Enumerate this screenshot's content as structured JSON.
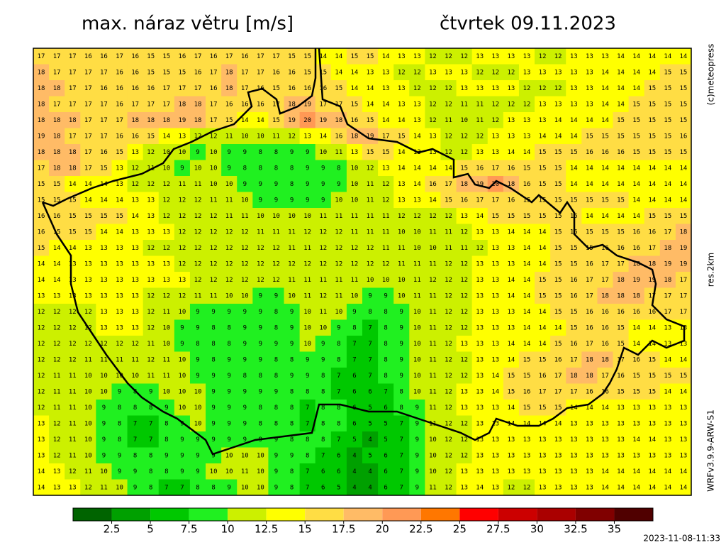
{
  "header": {
    "title": "max. náraz větru [m/s]",
    "date": "čtvrtek 09.11.2023"
  },
  "side_labels": {
    "copyright": "(c)meteopress",
    "resolution": "res.2km",
    "model": "WRFv3.9.9-ARW-S1"
  },
  "timestamp": "2023-11-08-11:33",
  "colorbar": {
    "ticks": [
      2.5,
      5,
      7.5,
      10,
      12.5,
      15,
      17.5,
      20,
      22.5,
      25,
      27.5,
      30,
      32.5,
      35
    ],
    "colors": [
      "#006400",
      "#00a000",
      "#00c800",
      "#20f020",
      "#ccf000",
      "#ffff00",
      "#ffdd44",
      "#ffbb66",
      "#ff9955",
      "#ff7700",
      "#ff0000",
      "#cc0000",
      "#aa0000",
      "#800000",
      "#500000"
    ]
  },
  "grid": {
    "rows": [
      [
        17,
        17,
        17,
        16,
        16,
        17,
        16,
        15,
        15,
        16,
        17,
        16,
        17,
        16,
        17,
        17,
        15,
        15,
        14,
        14,
        15,
        15,
        14,
        13,
        13,
        12,
        12,
        12,
        13,
        13,
        13,
        13,
        12,
        12,
        13,
        13,
        13,
        14,
        14,
        14,
        14,
        14
      ],
      [
        18,
        17,
        17,
        17,
        17,
        16,
        16,
        15,
        15,
        15,
        16,
        17,
        18,
        17,
        17,
        16,
        16,
        15,
        15,
        14,
        14,
        13,
        13,
        12,
        12,
        13,
        13,
        13,
        12,
        12,
        12,
        13,
        13,
        13,
        13,
        13,
        14,
        14,
        14,
        14,
        15,
        15
      ],
      [
        18,
        18,
        17,
        17,
        16,
        16,
        16,
        16,
        17,
        17,
        17,
        16,
        18,
        17,
        16,
        15,
        16,
        16,
        16,
        15,
        14,
        14,
        13,
        13,
        12,
        12,
        12,
        13,
        13,
        13,
        13,
        12,
        12,
        12,
        13,
        13,
        14,
        14,
        14,
        15,
        15,
        15
      ],
      [
        18,
        17,
        17,
        17,
        17,
        16,
        17,
        17,
        17,
        18,
        18,
        17,
        16,
        16,
        16,
        17,
        18,
        19,
        17,
        17,
        15,
        14,
        14,
        13,
        13,
        12,
        12,
        11,
        11,
        12,
        12,
        12,
        13,
        13,
        13,
        13,
        14,
        14,
        15,
        15,
        15,
        15
      ],
      [
        18,
        18,
        18,
        17,
        17,
        17,
        18,
        18,
        18,
        19,
        18,
        17,
        15,
        14,
        14,
        15,
        19,
        20,
        19,
        18,
        16,
        15,
        14,
        14,
        13,
        12,
        11,
        10,
        11,
        12,
        13,
        13,
        13,
        14,
        14,
        14,
        14,
        15,
        15,
        15,
        15,
        15
      ],
      [
        19,
        18,
        17,
        17,
        17,
        16,
        16,
        15,
        14,
        13,
        12,
        12,
        11,
        10,
        10,
        11,
        12,
        13,
        14,
        16,
        18,
        19,
        17,
        15,
        14,
        13,
        12,
        12,
        12,
        13,
        13,
        13,
        14,
        14,
        14,
        15,
        15,
        15,
        15,
        15,
        15,
        16
      ],
      [
        18,
        18,
        18,
        17,
        16,
        15,
        13,
        12,
        10,
        10,
        9,
        10,
        9,
        9,
        8,
        8,
        9,
        9,
        10,
        11,
        13,
        15,
        15,
        14,
        13,
        13,
        12,
        12,
        13,
        13,
        14,
        14,
        15,
        15,
        15,
        16,
        16,
        16,
        15,
        15,
        15,
        15
      ],
      [
        17,
        18,
        18,
        17,
        15,
        13,
        12,
        11,
        10,
        9,
        10,
        10,
        9,
        8,
        8,
        8,
        8,
        9,
        9,
        8,
        10,
        12,
        13,
        14,
        14,
        14,
        14,
        15,
        16,
        17,
        16,
        15,
        15,
        15,
        14,
        14,
        14,
        14,
        14,
        14,
        14,
        14
      ],
      [
        15,
        15,
        14,
        14,
        14,
        13,
        12,
        12,
        12,
        11,
        11,
        10,
        10,
        9,
        9,
        9,
        8,
        9,
        9,
        9,
        10,
        11,
        12,
        13,
        14,
        16,
        17,
        18,
        19,
        20,
        18,
        16,
        15,
        15,
        14,
        14,
        14,
        14,
        14,
        14,
        14,
        14
      ],
      [
        15,
        15,
        15,
        14,
        14,
        14,
        13,
        13,
        12,
        12,
        12,
        11,
        11,
        10,
        9,
        9,
        9,
        9,
        9,
        10,
        10,
        11,
        12,
        13,
        13,
        14,
        15,
        16,
        17,
        17,
        16,
        15,
        15,
        15,
        15,
        15,
        15,
        15,
        14,
        14,
        14,
        14
      ],
      [
        16,
        16,
        15,
        15,
        15,
        15,
        14,
        13,
        12,
        12,
        12,
        12,
        11,
        11,
        10,
        10,
        10,
        10,
        11,
        11,
        11,
        11,
        11,
        12,
        12,
        12,
        12,
        13,
        14,
        15,
        15,
        15,
        15,
        15,
        15,
        14,
        14,
        14,
        14,
        15,
        15,
        15
      ],
      [
        16,
        15,
        15,
        15,
        14,
        14,
        13,
        13,
        13,
        12,
        12,
        12,
        12,
        12,
        11,
        11,
        11,
        12,
        12,
        12,
        11,
        11,
        11,
        10,
        10,
        11,
        11,
        12,
        13,
        13,
        14,
        14,
        14,
        15,
        15,
        15,
        15,
        15,
        16,
        16,
        17,
        18
      ],
      [
        15,
        14,
        14,
        13,
        13,
        13,
        13,
        12,
        12,
        12,
        12,
        12,
        12,
        12,
        12,
        12,
        11,
        11,
        12,
        12,
        12,
        12,
        11,
        11,
        10,
        10,
        11,
        11,
        12,
        13,
        13,
        14,
        14,
        15,
        15,
        15,
        16,
        16,
        16,
        17,
        18,
        19
      ],
      [
        14,
        14,
        13,
        13,
        13,
        13,
        13,
        13,
        13,
        12,
        12,
        12,
        12,
        12,
        12,
        12,
        12,
        12,
        12,
        12,
        12,
        12,
        12,
        11,
        11,
        11,
        12,
        12,
        13,
        13,
        13,
        14,
        14,
        15,
        15,
        16,
        17,
        17,
        18,
        18,
        19,
        19
      ],
      [
        14,
        14,
        13,
        13,
        13,
        13,
        13,
        13,
        13,
        13,
        12,
        12,
        12,
        12,
        12,
        12,
        11,
        11,
        11,
        11,
        11,
        10,
        10,
        10,
        11,
        12,
        12,
        12,
        13,
        13,
        14,
        14,
        15,
        15,
        16,
        17,
        17,
        18,
        19,
        19,
        18,
        17
      ],
      [
        13,
        13,
        13,
        13,
        13,
        13,
        13,
        12,
        12,
        12,
        11,
        11,
        10,
        10,
        9,
        9,
        10,
        11,
        12,
        11,
        10,
        9,
        9,
        10,
        11,
        11,
        12,
        12,
        13,
        13,
        14,
        14,
        15,
        15,
        16,
        17,
        18,
        18,
        18,
        17,
        17,
        17
      ],
      [
        12,
        12,
        12,
        12,
        13,
        13,
        13,
        12,
        11,
        10,
        9,
        9,
        9,
        9,
        9,
        8,
        9,
        10,
        11,
        10,
        9,
        8,
        8,
        9,
        10,
        11,
        12,
        12,
        13,
        13,
        13,
        14,
        14,
        15,
        15,
        16,
        16,
        16,
        16,
        16,
        17,
        17
      ],
      [
        12,
        12,
        12,
        12,
        13,
        13,
        13,
        12,
        10,
        9,
        9,
        8,
        8,
        9,
        9,
        8,
        9,
        10,
        10,
        9,
        8,
        7,
        8,
        9,
        10,
        11,
        12,
        12,
        13,
        13,
        13,
        14,
        14,
        14,
        15,
        16,
        16,
        15,
        14,
        14,
        13,
        13
      ],
      [
        12,
        12,
        12,
        12,
        12,
        12,
        12,
        11,
        10,
        9,
        8,
        8,
        8,
        9,
        9,
        9,
        9,
        10,
        9,
        8,
        7,
        7,
        8,
        9,
        10,
        11,
        12,
        13,
        13,
        13,
        14,
        14,
        14,
        15,
        16,
        17,
        16,
        15,
        14,
        14,
        13,
        13
      ],
      [
        12,
        12,
        12,
        11,
        11,
        11,
        11,
        12,
        11,
        10,
        9,
        8,
        9,
        9,
        9,
        8,
        8,
        9,
        9,
        8,
        7,
        7,
        8,
        9,
        10,
        11,
        12,
        12,
        13,
        13,
        14,
        15,
        15,
        16,
        17,
        18,
        18,
        17,
        16,
        15,
        14,
        14
      ],
      [
        12,
        11,
        11,
        10,
        10,
        10,
        10,
        11,
        11,
        10,
        9,
        9,
        9,
        8,
        8,
        8,
        9,
        9,
        8,
        7,
        6,
        7,
        8,
        9,
        10,
        11,
        12,
        12,
        13,
        14,
        15,
        15,
        16,
        17,
        18,
        18,
        17,
        16,
        15,
        15,
        15,
        15
      ],
      [
        12,
        11,
        11,
        10,
        10,
        9,
        8,
        9,
        10,
        10,
        10,
        9,
        9,
        9,
        9,
        9,
        8,
        8,
        8,
        7,
        6,
        6,
        7,
        8,
        10,
        11,
        12,
        13,
        13,
        14,
        15,
        16,
        17,
        17,
        17,
        16,
        16,
        15,
        15,
        15,
        14,
        14
      ],
      [
        12,
        11,
        11,
        10,
        9,
        8,
        8,
        8,
        9,
        10,
        10,
        9,
        9,
        9,
        8,
        8,
        8,
        7,
        8,
        8,
        6,
        5,
        6,
        8,
        9,
        11,
        12,
        13,
        13,
        13,
        14,
        15,
        15,
        15,
        14,
        14,
        14,
        13,
        13,
        13,
        13,
        13
      ],
      [
        13,
        12,
        11,
        10,
        9,
        8,
        7,
        7,
        8,
        9,
        10,
        9,
        9,
        9,
        8,
        8,
        8,
        7,
        8,
        8,
        6,
        5,
        5,
        7,
        9,
        11,
        12,
        12,
        13,
        13,
        14,
        14,
        14,
        14,
        13,
        13,
        13,
        13,
        13,
        13,
        13,
        13
      ],
      [
        13,
        12,
        11,
        10,
        9,
        8,
        7,
        7,
        8,
        9,
        9,
        9,
        9,
        9,
        9,
        9,
        8,
        8,
        8,
        7,
        5,
        4,
        5,
        7,
        9,
        10,
        12,
        12,
        13,
        13,
        13,
        13,
        13,
        13,
        13,
        13,
        13,
        13,
        14,
        14,
        13,
        13
      ],
      [
        13,
        12,
        11,
        10,
        9,
        9,
        8,
        8,
        9,
        9,
        9,
        9,
        10,
        10,
        10,
        9,
        9,
        8,
        7,
        6,
        4,
        5,
        6,
        7,
        9,
        10,
        12,
        12,
        13,
        13,
        13,
        13,
        13,
        13,
        13,
        13,
        13,
        13,
        13,
        13,
        13,
        13
      ],
      [
        14,
        13,
        12,
        11,
        10,
        9,
        9,
        8,
        8,
        9,
        9,
        10,
        10,
        11,
        10,
        9,
        8,
        7,
        6,
        6,
        4,
        4,
        6,
        7,
        9,
        10,
        12,
        13,
        13,
        13,
        13,
        13,
        13,
        13,
        13,
        13,
        14,
        14,
        14,
        14,
        14,
        14
      ],
      [
        14,
        13,
        13,
        12,
        11,
        10,
        9,
        8,
        7,
        7,
        8,
        8,
        9,
        10,
        10,
        9,
        8,
        7,
        6,
        5,
        4,
        4,
        6,
        7,
        9,
        11,
        12,
        13,
        14,
        13,
        12,
        12,
        13,
        13,
        13,
        13,
        14,
        14,
        14,
        14,
        14,
        14
      ]
    ]
  }
}
